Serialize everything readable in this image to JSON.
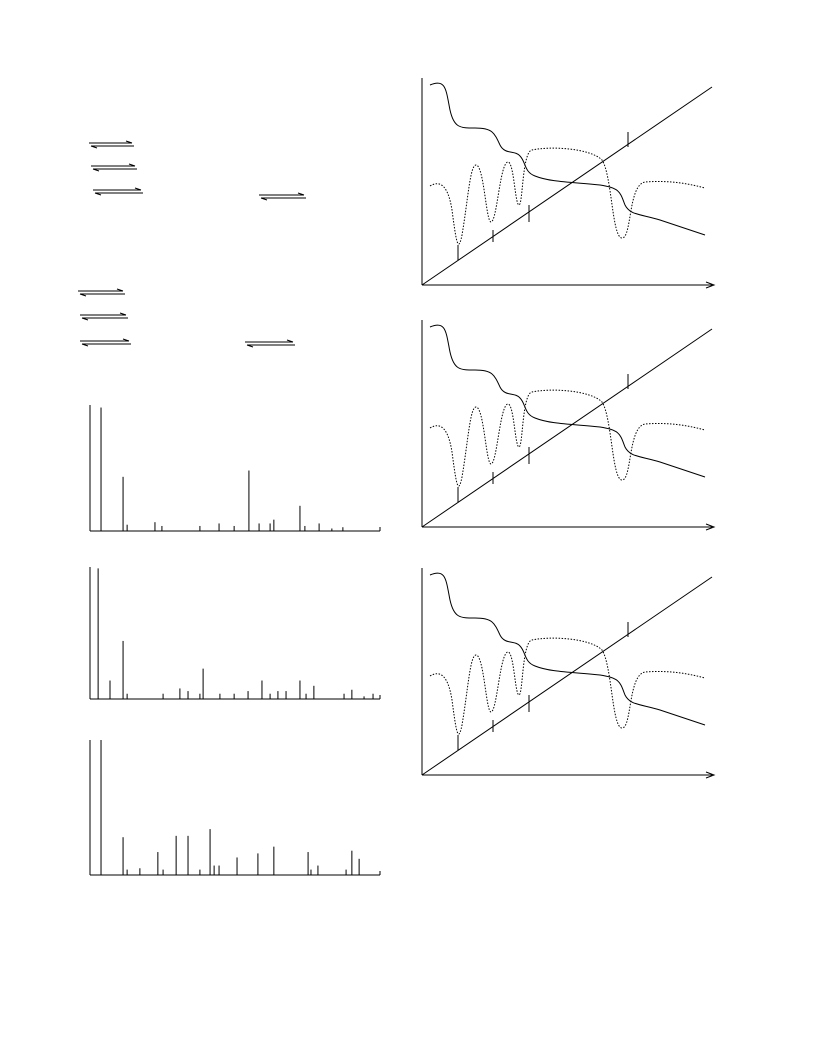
{
  "chart_data": [
    {
      "type": "stick",
      "xlim": [
        0,
        100
      ],
      "ylim": [
        0,
        100
      ],
      "x": [
        3.8,
        11.4,
        12.8,
        22.4,
        24.8,
        37.9,
        44.5,
        49.7,
        54.8,
        58.3,
        62.1,
        63.4,
        72.4,
        74.1,
        79.0,
        83.4,
        87.2
      ],
      "values": [
        98,
        43,
        5,
        7,
        4,
        4,
        6,
        4,
        48,
        6,
        6,
        9,
        20,
        4,
        6,
        2,
        3
      ]
    },
    {
      "type": "stick",
      "xlim": [
        0,
        100
      ],
      "ylim": [
        0,
        100
      ],
      "x": [
        2.8,
        6.9,
        11.4,
        12.8,
        25.2,
        31.0,
        33.8,
        37.9,
        39.0,
        44.8,
        49.7,
        54.5,
        59.3,
        62.1,
        64.8,
        67.6,
        72.4,
        74.5,
        77.2,
        87.6,
        90.3,
        94.5,
        97.6
      ],
      "values": [
        99,
        14,
        44,
        4,
        4,
        8,
        6,
        4,
        23,
        4,
        4,
        6,
        14,
        4,
        6,
        6,
        14,
        4,
        10,
        4,
        7,
        2,
        4
      ]
    },
    {
      "type": "stick",
      "xlim": [
        0,
        100
      ],
      "ylim": [
        0,
        100
      ],
      "x": [
        3.8,
        11.4,
        12.8,
        17.2,
        23.4,
        25.2,
        29.7,
        33.8,
        37.9,
        41.4,
        42.8,
        44.5,
        50.7,
        57.9,
        63.4,
        75.2,
        76.2,
        78.6,
        88.3,
        90.3,
        92.8
      ],
      "values": [
        100,
        28,
        4,
        5,
        17,
        4,
        29,
        29,
        4,
        34,
        7,
        7,
        13,
        16,
        21,
        17,
        4,
        7,
        4,
        18,
        12
      ]
    }
  ]
}
